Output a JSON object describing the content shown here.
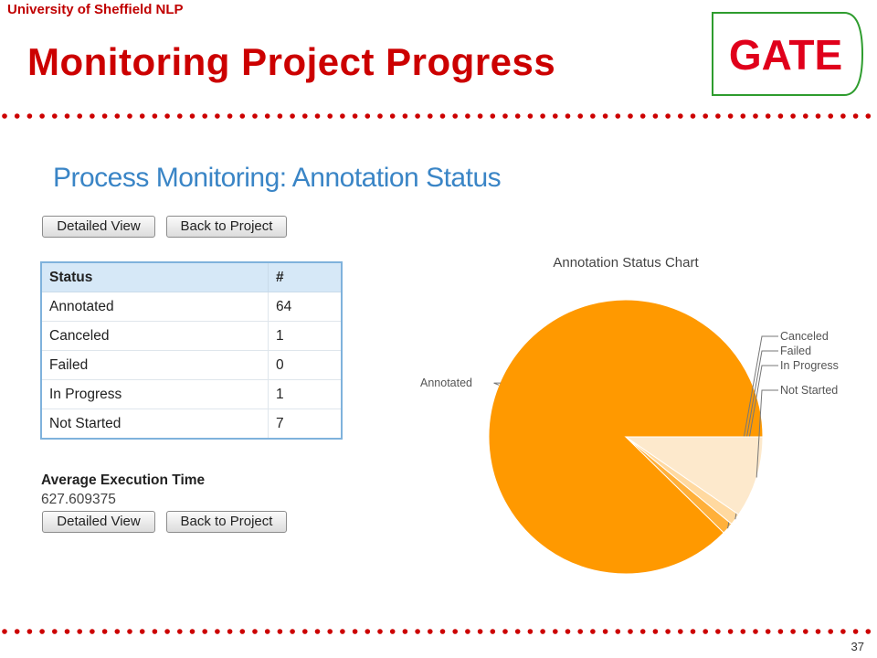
{
  "slide": {
    "org": "University of Sheffield NLP",
    "title": "Monitoring Project Progress",
    "logo_text": "GATE",
    "page_number": "37",
    "accent_color": "#cc0000"
  },
  "panel": {
    "title": "Process Monitoring: Annotation Status",
    "buttons": {
      "detailed_view": "Detailed View",
      "back_to_project": "Back to Project"
    },
    "table": {
      "headers": [
        "Status",
        "#"
      ],
      "rows": [
        {
          "status": "Annotated",
          "count": "64"
        },
        {
          "status": "Canceled",
          "count": "1"
        },
        {
          "status": "Failed",
          "count": "0"
        },
        {
          "status": "In Progress",
          "count": "1"
        },
        {
          "status": "Not Started",
          "count": "7"
        }
      ]
    },
    "avg_label": "Average Execution Time",
    "avg_value": "627.609375"
  },
  "chart_data": {
    "type": "pie",
    "title": "Annotation Status Chart",
    "categories": [
      "Annotated",
      "Canceled",
      "Failed",
      "In Progress",
      "Not Started"
    ],
    "values": [
      64,
      1,
      0,
      1,
      7
    ],
    "colors": [
      "#ff9900",
      "#ffb03a",
      "#ffc870",
      "#ffd9a0",
      "#fde9cc"
    ]
  }
}
